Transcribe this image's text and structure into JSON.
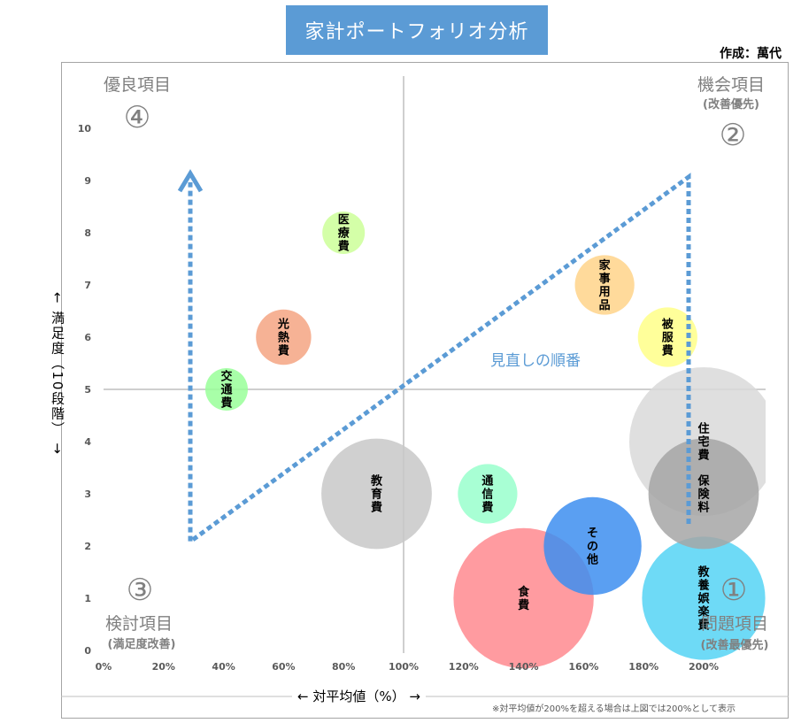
{
  "page_title": "家計ポートフォリオ分析",
  "author": "作成：萬代",
  "y_axis_label": "← 満足度（10段階） →",
  "x_axis_label": "← 対平均値（%） →",
  "footnote": "※対平均値が200%を超える場合は上図では200%として表示",
  "trend_label": "見直しの順番",
  "quadrants": [
    {
      "number": "④",
      "title": "優良項目",
      "sub": ""
    },
    {
      "number": "②",
      "title": "機会項目",
      "sub": "(改善優先)"
    },
    {
      "number": "③",
      "title": "検討項目",
      "sub": "(満足度改善)"
    },
    {
      "number": "①",
      "title": "問題項目",
      "sub": "(改善最優先)"
    }
  ],
  "colors": {
    "title_bg": "#5b9bd5",
    "arrow": "#5b9bd5",
    "quadrant_text": "#808080",
    "reference_line": "#bfbfbf"
  },
  "chart_data": {
    "type": "bubble",
    "xlim": [
      0,
      200
    ],
    "ylim": [
      0,
      10
    ],
    "x_ticks": [
      "0%",
      "20%",
      "40%",
      "60%",
      "80%",
      "100%",
      "120%",
      "140%",
      "160%",
      "180%",
      "200%"
    ],
    "y_ticks": [
      "0",
      "1",
      "2",
      "3",
      "4",
      "5",
      "6",
      "7",
      "8",
      "9",
      "10"
    ],
    "reference_lines": {
      "x": 100,
      "y": 5
    },
    "points": [
      {
        "label": "医療費",
        "x": 80,
        "y": 8,
        "size": 1.0,
        "color": "#ccff99"
      },
      {
        "label": "光熱費",
        "x": 60,
        "y": 6,
        "size": 1.3,
        "color": "#f4a582"
      },
      {
        "label": "交通費",
        "x": 41,
        "y": 5,
        "size": 1.0,
        "color": "#99ff99"
      },
      {
        "label": "家事用品",
        "x": 167,
        "y": 7,
        "size": 1.4,
        "color": "#ffd38a"
      },
      {
        "label": "被服費",
        "x": 188,
        "y": 6,
        "size": 1.4,
        "color": "#ffff88"
      },
      {
        "label": "教育費",
        "x": 91,
        "y": 3,
        "size": 2.6,
        "color": "#c8c8c8"
      },
      {
        "label": "通信費",
        "x": 128,
        "y": 3,
        "size": 1.4,
        "color": "#99ffcc"
      },
      {
        "label": "住宅費",
        "x": 200,
        "y": 4,
        "size": 3.5,
        "color": "#d9d9d9"
      },
      {
        "label": "保険料",
        "x": 200,
        "y": 3,
        "size": 2.6,
        "color": "#a6a6a6"
      },
      {
        "label": "その他",
        "x": 163,
        "y": 2,
        "size": 2.3,
        "color": "#3d8ef0"
      },
      {
        "label": "食費",
        "x": 140,
        "y": 1,
        "size": 3.3,
        "color": "#ff8a8f"
      },
      {
        "label": "教養娯楽費",
        "x": 200,
        "y": 1,
        "size": 2.9,
        "color": "#55d4f5"
      }
    ]
  }
}
